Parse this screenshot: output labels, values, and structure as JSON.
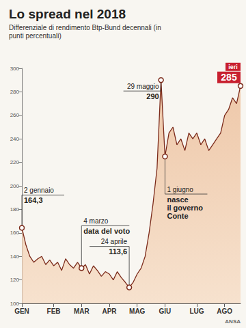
{
  "chart_data": {
    "type": "area",
    "title": "Lo spread nel 2018",
    "subtitle": "Differenziale di rendimento Btp-Bund decennali (in punti percentuali)",
    "source": "ANSA",
    "categories": [
      "GEN",
      null,
      null,
      null,
      null,
      null,
      null,
      null,
      "FEB",
      null,
      null,
      null,
      null,
      null,
      null,
      "MAR",
      null,
      null,
      null,
      null,
      null,
      null,
      "APR",
      null,
      null,
      null,
      null,
      null,
      null,
      "MAG",
      null,
      null,
      null,
      null,
      null,
      null,
      "GIU",
      null,
      null,
      null,
      null,
      null,
      null,
      null,
      "LUG",
      null,
      null,
      null,
      null,
      null,
      null,
      "AGO",
      null,
      null,
      null,
      null
    ],
    "values": [
      164.3,
      150,
      140,
      135,
      138,
      140,
      133,
      137,
      132,
      135,
      128,
      138,
      133,
      130,
      135,
      130,
      133,
      125,
      132,
      128,
      123,
      127,
      125,
      120,
      127,
      122,
      118,
      113.6,
      118,
      125,
      130,
      140,
      160,
      185,
      215,
      290,
      225,
      245,
      250,
      235,
      240,
      230,
      245,
      240,
      245,
      235,
      240,
      230,
      235,
      240,
      245,
      260,
      265,
      275,
      270,
      285
    ],
    "color": "#7b2a1a",
    "ylim": [
      100,
      300
    ],
    "yticks": [
      100,
      120,
      140,
      160,
      180,
      200,
      220,
      240,
      260,
      280,
      300
    ],
    "grid": false,
    "annotations": [
      {
        "text": [
          "2 gennaio",
          "164,3"
        ],
        "value": 164.3
      },
      {
        "text": [
          "4 marzo",
          "data del voto"
        ]
      },
      {
        "text": [
          "24 aprile",
          "113,6"
        ],
        "value": 113.6
      },
      {
        "text": [
          "29 maggio",
          "290"
        ],
        "value": 290
      },
      {
        "text": [
          "1 giugno",
          "nasce",
          "il governo",
          "Conte"
        ]
      },
      {
        "text": [
          "ieri",
          "285"
        ],
        "value": 285
      }
    ]
  }
}
